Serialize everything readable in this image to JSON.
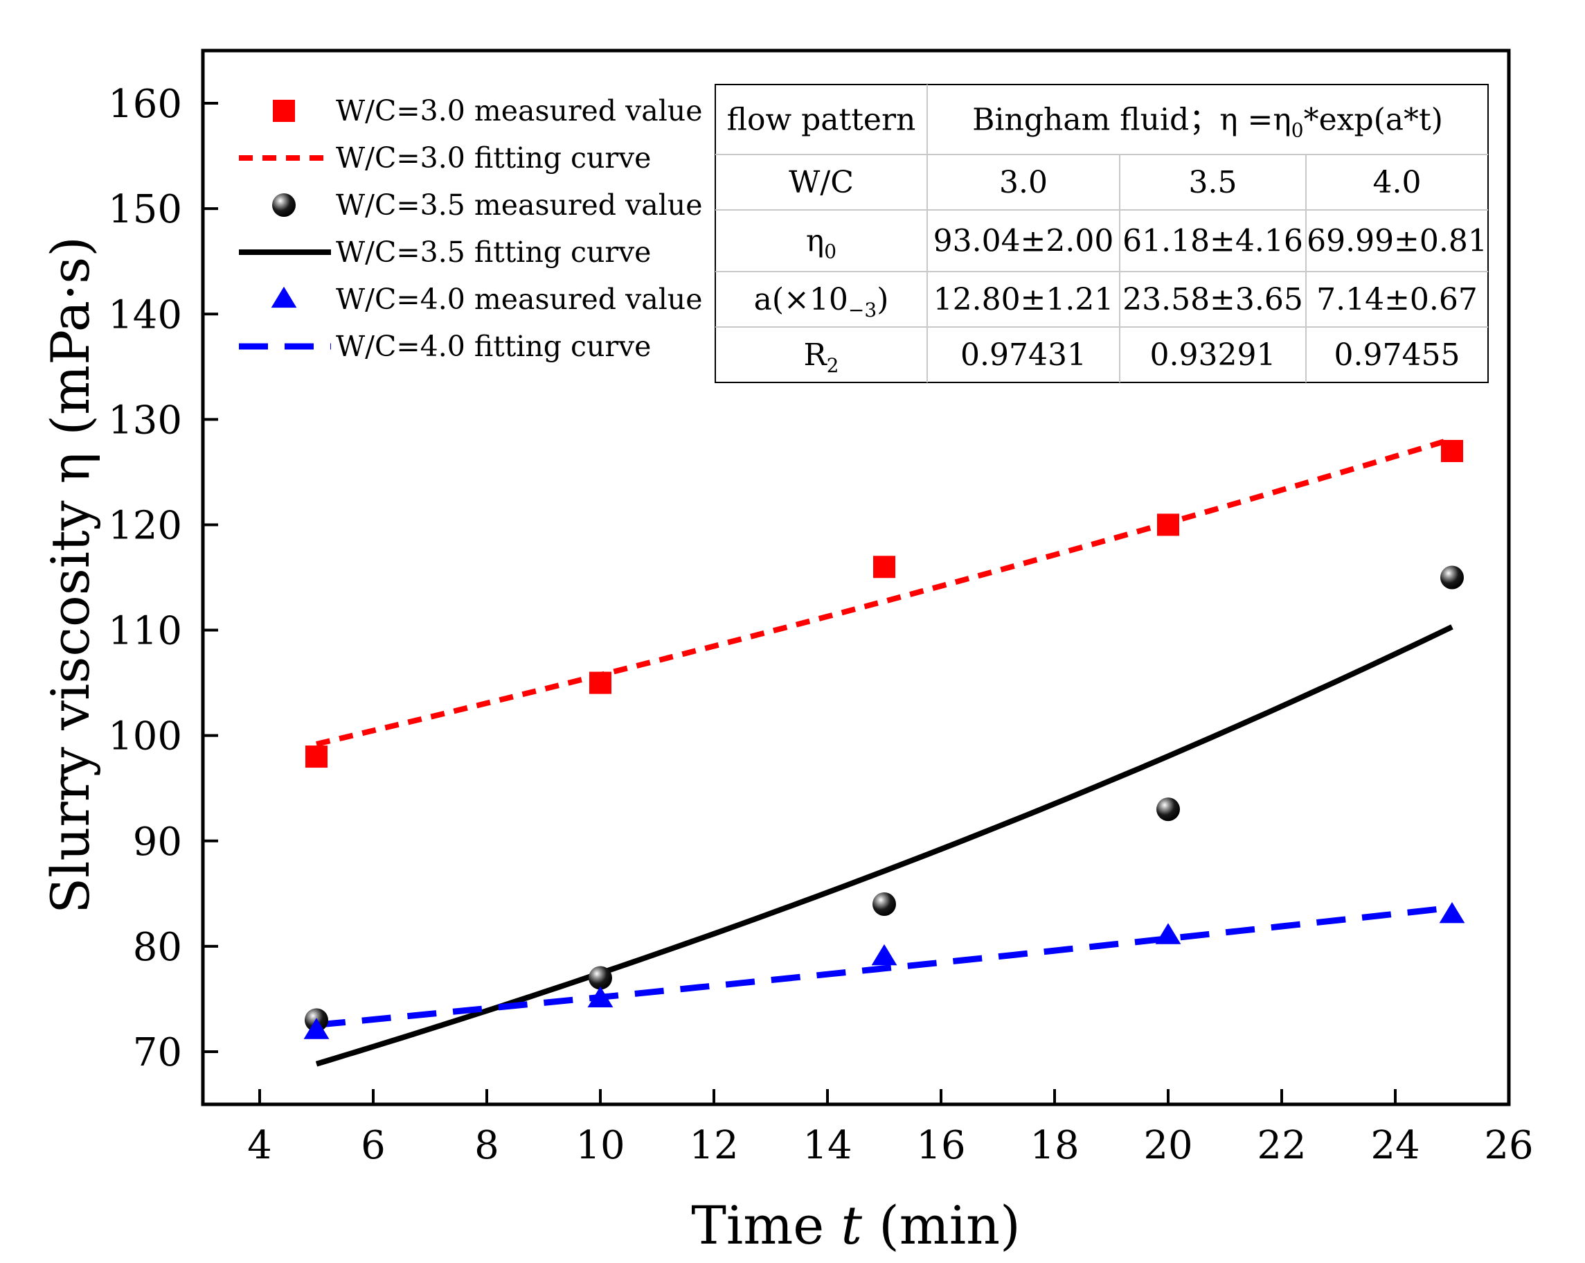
{
  "chart_data": {
    "type": "scatter",
    "xlabel_parts": [
      "Time ",
      "t",
      " (min)"
    ],
    "ylabel": "Slurry viscosity η (mPa·s)",
    "xlim": [
      3,
      26
    ],
    "ylim": [
      65,
      165
    ],
    "xticks": [
      "4",
      "6",
      "8",
      "10",
      "12",
      "14",
      "16",
      "18",
      "20",
      "22",
      "24",
      "26"
    ],
    "yticks": [
      "70",
      "80",
      "90",
      "100",
      "110",
      "120",
      "130",
      "140",
      "150",
      "160"
    ],
    "legend_position": "top-left",
    "series": [
      {
        "name": "W/C=3.0 measured value",
        "kind": "points",
        "marker": "square",
        "color": "#ff0000",
        "x": [
          5,
          10,
          15,
          20,
          25
        ],
        "y": [
          98,
          105,
          116,
          120,
          127
        ]
      },
      {
        "name": "W/C=3.0 fitting curve",
        "kind": "curve",
        "style": "short-dash",
        "color": "#ff0000",
        "eta0": 93.04,
        "a": 0.0128
      },
      {
        "name": "W/C=3.5 measured value",
        "kind": "points",
        "marker": "sphere",
        "color": "#000000",
        "x": [
          5,
          10,
          15,
          20,
          25
        ],
        "y": [
          73,
          77,
          84,
          93,
          115
        ]
      },
      {
        "name": "W/C=3.5 fitting curve",
        "kind": "curve",
        "style": "solid",
        "color": "#000000",
        "eta0": 61.18,
        "a": 0.02358
      },
      {
        "name": "W/C=4.0 measured value",
        "kind": "points",
        "marker": "triangle",
        "color": "#0000ff",
        "x": [
          5,
          10,
          15,
          20,
          25
        ],
        "y": [
          72,
          75,
          79,
          81,
          83
        ]
      },
      {
        "name": "W/C=4.0 fitting curve",
        "kind": "curve",
        "style": "long-dash",
        "color": "#0000ff",
        "eta0": 69.99,
        "a": 0.00714
      }
    ],
    "table": {
      "header_label": "flow pattern",
      "header_value_parts": [
        "Bingham fluid；η =η",
        "0",
        "*exp(a*t)"
      ],
      "rows": [
        {
          "label": [
            "W/C"
          ],
          "cells": [
            "3.0",
            "3.5",
            "4.0"
          ]
        },
        {
          "label": [
            "η",
            "0"
          ],
          "cells": [
            "93.04±2.00",
            "61.18±4.16",
            "69.99±0.81"
          ]
        },
        {
          "label": [
            "a(×10",
            "−3",
            ")"
          ],
          "cells": [
            "12.80±1.21",
            "23.58±3.65",
            "7.14±0.67"
          ]
        },
        {
          "label": [
            "R",
            "2"
          ],
          "cells": [
            "0.97431",
            "0.93291",
            "0.97455"
          ]
        }
      ]
    }
  }
}
